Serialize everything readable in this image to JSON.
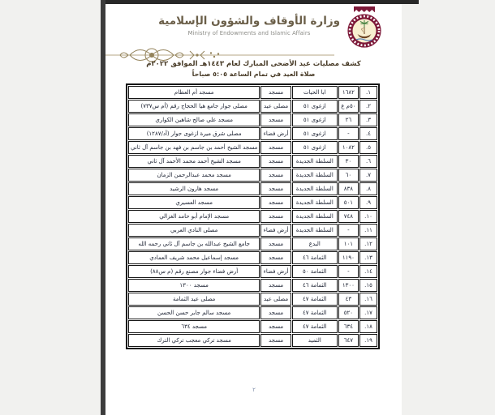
{
  "header": {
    "logo": "qatar-ministry-emblem",
    "ministry_name_ar": "وزارة الأوقاف والشؤون الإسلامية",
    "ministry_name_en": "Ministry of Endowments and Islamic Affairs",
    "title_line1": "كشف مصليات عيد الأضحى المبارك لعام ١٤٤٣هـ الموافق ٢٠٢٢م",
    "title_line2": "صلاة العيد في تمام الساعة ٥:٠٥ صباحاً"
  },
  "colors": {
    "maroon": "#7d1939",
    "ornament": "#93825a",
    "title_text": "#473a26",
    "table_text": "#202636",
    "canvas_background": "#f1f1ef",
    "page_background": "#ffffff"
  },
  "table": {
    "rows": [
      {
        "no": "١.",
        "count": "١٦٨٢",
        "zone": "ابا الحيات",
        "type": "مسجد",
        "name": "مسجد أم العظام"
      },
      {
        "no": "٢.",
        "count": "٥٠م ع",
        "zone": "ازغوى ٥١",
        "type": "مصلى عيد",
        "name": "مصلى جوار جامع هيا الحجاج رقم (أم س٧٣٧)"
      },
      {
        "no": "٣.",
        "count": "٢٦",
        "zone": "ازغوى ٥١",
        "type": "مسجد",
        "name": "مسجد علي صالح شاهين الكواري"
      },
      {
        "no": "٤.",
        "count": "-",
        "zone": "ازغوى ٥١",
        "type": "أرض فضاء",
        "name": "مصلى شرق ميرة ازغوى جوار (أد/١٢٨٧)"
      },
      {
        "no": "٥.",
        "count": "١٠٨٢",
        "zone": "ازغوى ٥١",
        "type": "مسجد",
        "name": "مسجد الشيخ أحمد بن جاسم بن فهد بن جاسم آل ثاني"
      },
      {
        "no": "٦.",
        "count": "٣٠",
        "zone": "السلطة الجديدة",
        "type": "مسجد",
        "name": "مسجد الشيخ أحمد محمد الأحمد آل ثاني"
      },
      {
        "no": "٧.",
        "count": "٦٠",
        "zone": "السلطة الجديدة",
        "type": "مسجد",
        "name": "مسجد محمد عبدالرحمن الزمان"
      },
      {
        "no": "٨.",
        "count": "٨٣٨",
        "zone": "السلطة الجديدة",
        "type": "مسجد",
        "name": "مسجد هارون الرشيد"
      },
      {
        "no": "٩.",
        "count": "٥٠١",
        "zone": "السلطة الجديدة",
        "type": "مسجد",
        "name": "مسجد العسيري"
      },
      {
        "no": "١٠.",
        "count": "٧٤٨",
        "zone": "السلطة الجديدة",
        "type": "مسجد",
        "name": "مسجد الإمام أبو حامد الغزالي"
      },
      {
        "no": "١١.",
        "count": "-",
        "zone": "السلطة الجديدة",
        "type": "أرض فضاء",
        "name": "مصلى النادي العربي"
      },
      {
        "no": "١٢.",
        "count": "١٠١",
        "zone": "البدع",
        "type": "مسجد",
        "name": "جامع الشيخ عبدالله بن جاسم آل ثاني رحمه الله"
      },
      {
        "no": "١٣.",
        "count": "١١٩٠",
        "zone": "الثمامة ٤٦",
        "type": "مسجد",
        "name": "مسجد إسماعيل محمد شريف العمادي"
      },
      {
        "no": "١٤.",
        "count": "-",
        "zone": "الثمامة ٥٠",
        "type": "أرض فضاء",
        "name": "أرض فضاء جوار مصنع رقم (م س٨٨)"
      },
      {
        "no": "١٥.",
        "count": "١٣٠٠",
        "zone": "الثمامة ٤٦",
        "type": "مسجد",
        "name": "مسجد ١٣٠٠"
      },
      {
        "no": "١٦.",
        "count": "٤٣",
        "zone": "الثمامة ٤٧",
        "type": "مصلى عيد",
        "name": "مصلى عيد الثمامة"
      },
      {
        "no": "١٧.",
        "count": "٥٢٠",
        "zone": "الثمامة ٤٧",
        "type": "مسجد",
        "name": "مسجد سالم جابر حسن الحسن"
      },
      {
        "no": "١٨.",
        "count": "٦٣٤",
        "zone": "الثمامة ٤٧",
        "type": "مسجد",
        "name": "مسجد ٦٣٤"
      },
      {
        "no": "١٩.",
        "count": "٦٤٧",
        "zone": "الثميد",
        "type": "مسجد",
        "name": "مسجد تركي معجب تركي الترك"
      }
    ]
  },
  "footer": {
    "page_number": "٢"
  }
}
